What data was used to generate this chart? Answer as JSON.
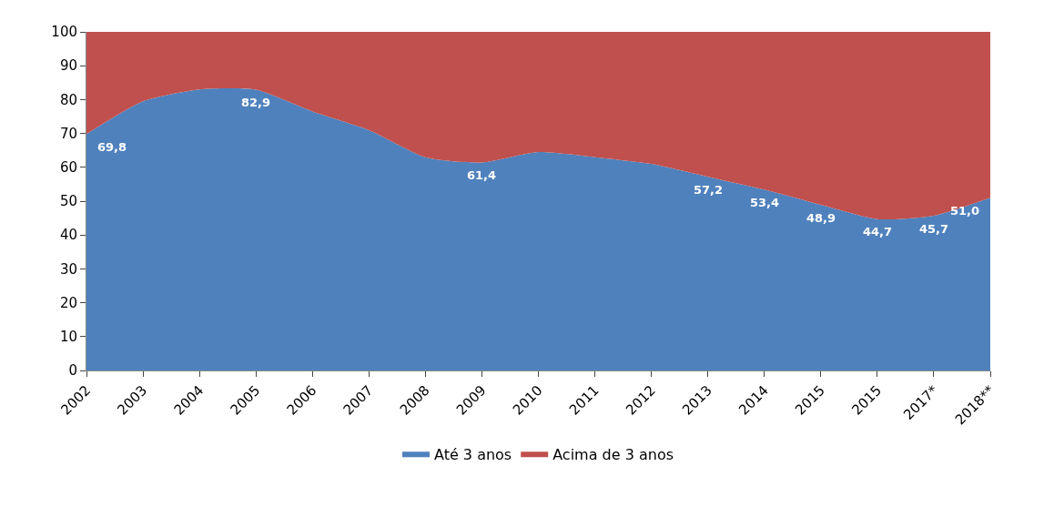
{
  "chart_data": {
    "type": "area",
    "stacked": true,
    "categories": [
      "2002",
      "2003",
      "2004",
      "2005",
      "2006",
      "2007",
      "2008",
      "2009",
      "2010",
      "2011",
      "2012",
      "2013",
      "2014",
      "2015",
      "2015",
      "2017*",
      "2018**"
    ],
    "series": [
      {
        "name": "Até 3 anos",
        "color": "#4f81bd",
        "values": [
          69.8,
          79.5,
          83,
          82.9,
          76.5,
          71,
          63,
          61.4,
          64.5,
          63,
          61,
          57.2,
          53.4,
          48.9,
          44.7,
          45.7,
          51.0
        ],
        "value_labels": [
          "69,8",
          null,
          null,
          "82,9",
          null,
          null,
          null,
          "61,4",
          null,
          null,
          null,
          "57,2",
          "53,4",
          "48,9",
          "44,7",
          "45,7",
          "51,0"
        ]
      },
      {
        "name": "Acima de 3 anos",
        "color": "#c0504d",
        "values": [
          30.2,
          20.5,
          17,
          17.1,
          23.5,
          29,
          37,
          38.6,
          35.5,
          37,
          39,
          42.8,
          46.6,
          51.1,
          55.3,
          54.3,
          49.0
        ]
      }
    ],
    "ylim": [
      0,
      100
    ],
    "yticks": [
      0,
      10,
      20,
      30,
      40,
      50,
      60,
      70,
      80,
      90,
      100
    ],
    "legend": "bottom"
  }
}
